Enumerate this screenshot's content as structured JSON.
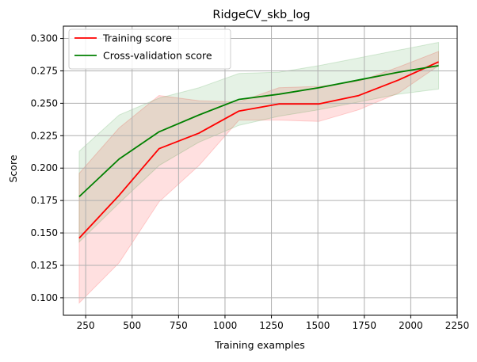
{
  "chart_data": {
    "type": "line",
    "title": "RidgeCV_skb_log",
    "xlabel": "Training examples",
    "ylabel": "Score",
    "xlim": [
      130,
      2250
    ],
    "ylim": [
      0.0865,
      0.3095
    ],
    "grid": true,
    "legend_position": "top-left",
    "xticks": [
      250,
      500,
      750,
      1000,
      1250,
      1500,
      1750,
      2000,
      2250
    ],
    "yticks": [
      0.1,
      0.125,
      0.15,
      0.175,
      0.2,
      0.225,
      0.25,
      0.275,
      0.3
    ],
    "xtick_labels": [
      "250",
      "500",
      "750",
      "1000",
      "1250",
      "1500",
      "1750",
      "2000",
      "2250"
    ],
    "ytick_labels": [
      "0.100",
      "0.125",
      "0.150",
      "0.175",
      "0.200",
      "0.225",
      "0.250",
      "0.275",
      "0.300"
    ],
    "x": [
      215,
      430,
      645,
      860,
      1075,
      1290,
      1505,
      1720,
      1935,
      2150
    ],
    "series": [
      {
        "name": "Training score",
        "color": "#ff0000",
        "values": [
          0.146,
          0.179,
          0.215,
          0.227,
          0.244,
          0.2495,
          0.2495,
          0.256,
          0.268,
          0.282
        ],
        "band_lower": [
          0.096,
          0.127,
          0.174,
          0.202,
          0.237,
          0.237,
          0.236,
          0.245,
          0.258,
          0.279
        ],
        "band_upper": [
          0.196,
          0.231,
          0.256,
          0.252,
          0.251,
          0.262,
          0.263,
          0.267,
          0.278,
          0.29
        ],
        "band_color": "#ff0000",
        "band_opacity": 0.12
      },
      {
        "name": "Cross-validation score",
        "color": "#008000",
        "values": [
          0.178,
          0.207,
          0.228,
          0.241,
          0.253,
          0.257,
          0.262,
          0.268,
          0.274,
          0.279
        ],
        "band_lower": [
          0.143,
          0.173,
          0.202,
          0.22,
          0.233,
          0.24,
          0.245,
          0.251,
          0.257,
          0.261
        ],
        "band_upper": [
          0.213,
          0.241,
          0.254,
          0.262,
          0.273,
          0.274,
          0.279,
          0.285,
          0.291,
          0.297
        ],
        "band_color": "#008000",
        "band_opacity": 0.1
      }
    ]
  }
}
